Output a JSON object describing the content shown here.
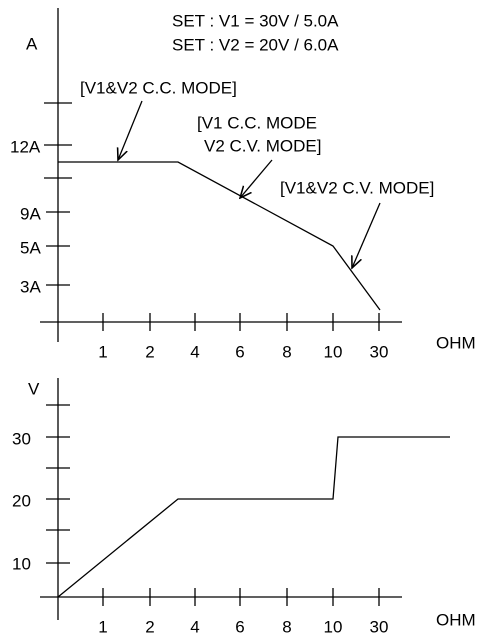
{
  "set_lines": [
    "SET : V1 = 30V / 5.0A",
    "SET : V2 = 20V / 6.0A"
  ],
  "current_chart": {
    "y_unit": "A",
    "y_labels": [
      "12A",
      "9A",
      "5A",
      "3A"
    ],
    "x_labels": [
      "1",
      "2",
      "4",
      "6",
      "8",
      "10",
      "30"
    ],
    "x_unit": "OHM",
    "annotations": [
      "[V1&V2 C.C. MODE]",
      "[V1 C.C. MODE",
      "V2 C.V. MODE]",
      "[V1&V2 C.V. MODE]"
    ]
  },
  "voltage_chart": {
    "y_unit": "V",
    "y_labels": [
      "30",
      "20",
      "10"
    ],
    "x_labels": [
      "1",
      "2",
      "4",
      "6",
      "8",
      "10",
      "30"
    ],
    "x_unit": "OHM"
  }
}
